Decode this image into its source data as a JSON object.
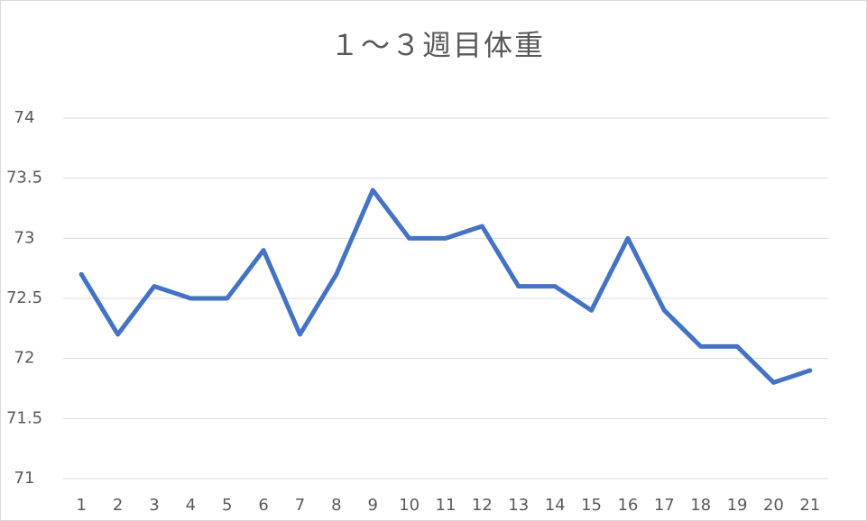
{
  "chart_data": {
    "type": "line",
    "title": "１～３週目体重",
    "categories": [
      1,
      2,
      3,
      4,
      5,
      6,
      7,
      8,
      9,
      10,
      11,
      12,
      13,
      14,
      15,
      16,
      17,
      18,
      19,
      20,
      21
    ],
    "values": [
      72.7,
      72.2,
      72.6,
      72.5,
      72.5,
      72.9,
      72.2,
      72.7,
      73.4,
      73.0,
      73.0,
      73.1,
      72.6,
      72.6,
      72.4,
      73.0,
      72.4,
      72.1,
      72.1,
      71.8,
      71.9
    ],
    "color": "#4472c4",
    "ylim": [
      71,
      74
    ],
    "yticks": [
      71,
      71.5,
      72,
      72.5,
      73,
      73.5,
      74
    ],
    "grid": true
  }
}
